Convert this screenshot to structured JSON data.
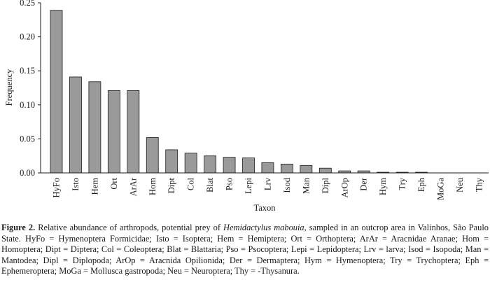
{
  "chart_data": {
    "type": "bar",
    "title": "",
    "xlabel": "Taxon",
    "ylabel": "Frequency",
    "ylim": [
      0,
      0.25
    ],
    "yticks": [
      0.0,
      0.05,
      0.1,
      0.15,
      0.2,
      0.25
    ],
    "ytick_labels": [
      "0.00",
      "0.05",
      "0.10",
      "0.15",
      "0.20",
      "0.25"
    ],
    "categories": [
      "HyFo",
      "Isto",
      "Hem",
      "Ort",
      "ArAr",
      "Hom",
      "Dipt",
      "Col",
      "Blat",
      "Pso",
      "Lepi",
      "Lrv",
      "Isod",
      "Man",
      "Dipl",
      "ArOp",
      "Der",
      "Hym",
      "Try",
      "Eph",
      "MoGa",
      "Neu",
      "Thy"
    ],
    "values": [
      0.239,
      0.141,
      0.134,
      0.121,
      0.121,
      0.052,
      0.034,
      0.029,
      0.025,
      0.023,
      0.022,
      0.015,
      0.013,
      0.011,
      0.007,
      0.003,
      0.003,
      0.001,
      0.001,
      0.001,
      0.0,
      0.0,
      0.0
    ],
    "bar_color": "#9a9a9a",
    "grid": false
  },
  "caption": {
    "label": "Figure 2.",
    "text_before_species": " Relative abundance of arthropods, potential prey of ",
    "species": "Hemidactylus mabouia",
    "text_after_species": ", sampled in an outcrop area in Valinhos, São Paulo State. HyFo = Hymenoptera Formicidae; Isto = Isoptera; Hem = Hemiptera; Ort = Orthoptera; ArAr = Aracnidae Aranae; Hom = Homoptera; Dipt = Diptera; Col = Coleoptera; Blat = Blattaria; Pso = Psocoptera; Lepi = Lepidoptera; Lrv = larva; Isod = Isopoda; Man = Mantodea; Dipl = Diplopoda; ArOp = Aracnida Opilionida; Der = Dermaptera; Hym = Hymenoptera; Try = Trychoptera; Eph = Ephemeroptera; MoGa = Mollusca gastropoda; Neu = Neuroptera; Thy = -Thysanura."
  }
}
